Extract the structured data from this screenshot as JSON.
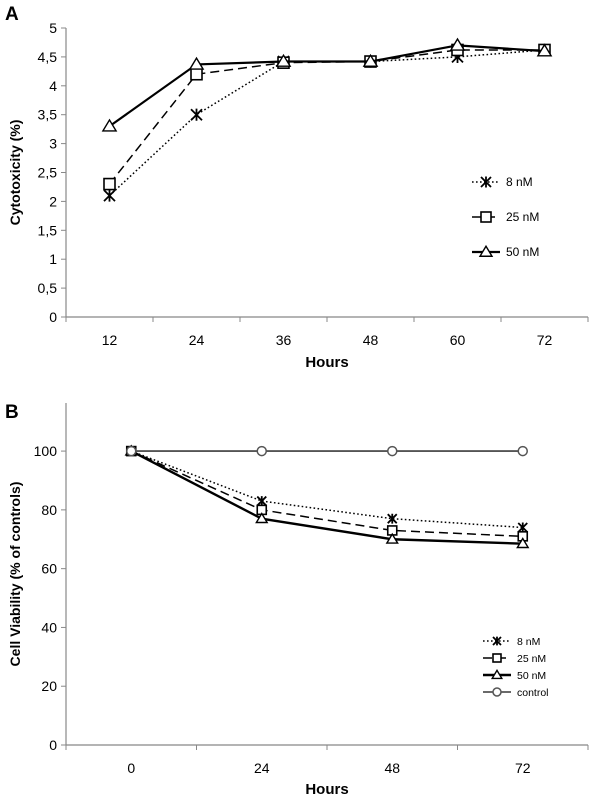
{
  "chart_data": [
    {
      "panel": "A",
      "type": "line",
      "xlabel": "Hours",
      "ylabel": "Cytotoxicity (%)",
      "categories": [
        "12",
        "24",
        "36",
        "48",
        "60",
        "72"
      ],
      "ylim": [
        0,
        5
      ],
      "yticks": [
        "0",
        "0,5",
        "1",
        "1,5",
        "2",
        "2,5",
        "3",
        "3,5",
        "4",
        "4,5",
        "5"
      ],
      "grid": false,
      "legend_position": "right",
      "series": [
        {
          "name": "8 nM",
          "values": [
            2.1,
            3.5,
            4.42,
            4.42,
            4.5,
            4.62
          ],
          "style": "dotted",
          "marker": "asterisk"
        },
        {
          "name": "25 nM",
          "values": [
            2.3,
            4.2,
            4.4,
            4.42,
            4.62,
            4.62
          ],
          "style": "dashed",
          "marker": "square"
        },
        {
          "name": "50 nM",
          "values": [
            3.3,
            4.37,
            4.42,
            4.42,
            4.7,
            4.6
          ],
          "style": "solid",
          "marker": "triangle"
        }
      ]
    },
    {
      "panel": "B",
      "type": "line",
      "xlabel": "Hours",
      "ylabel": "Cell Viability  (% of controls)",
      "categories": [
        "0",
        "24",
        "48",
        "72"
      ],
      "ylim": [
        0,
        115
      ],
      "yticks": [
        "0",
        "20",
        "40",
        "60",
        "80",
        "100"
      ],
      "grid": false,
      "legend_position": "bottom-right",
      "series": [
        {
          "name": "8 nM",
          "values": [
            100,
            83,
            77,
            74
          ],
          "style": "dotted",
          "marker": "asterisk"
        },
        {
          "name": "25 nM",
          "values": [
            100,
            80,
            73,
            71
          ],
          "style": "dashed",
          "marker": "square"
        },
        {
          "name": "50 nM",
          "values": [
            100,
            77,
            70,
            68.5
          ],
          "style": "solid",
          "marker": "triangle"
        },
        {
          "name": "control",
          "values": [
            100,
            100,
            100,
            100
          ],
          "style": "solid",
          "marker": "circle"
        }
      ]
    }
  ],
  "colors": {
    "series_a": "#000000",
    "series_b_strong": "#000000",
    "control": "#555555"
  }
}
